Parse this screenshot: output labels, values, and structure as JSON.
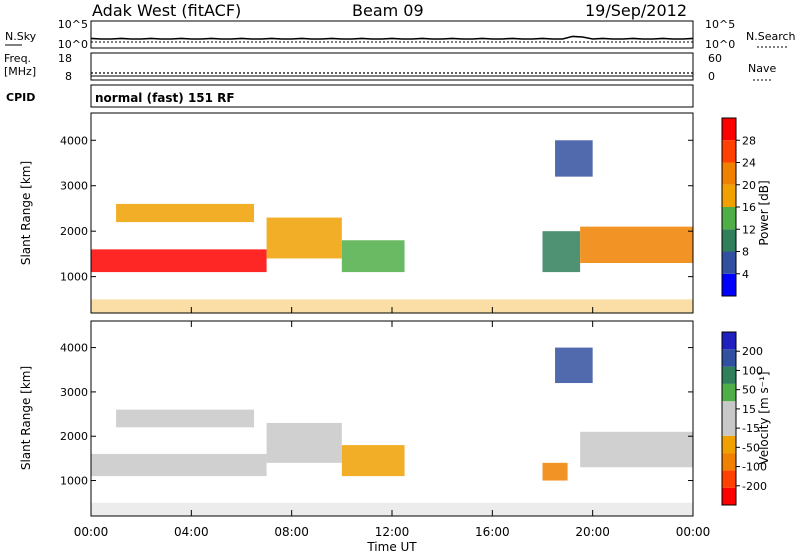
{
  "header": {
    "station": "Adak West (fitACF)",
    "beam": "Beam 09",
    "date": "19/Sep/2012"
  },
  "noise_panel": {
    "left_label": "N.Sky",
    "right_label": "N.Search",
    "left_ticks": [
      "10^5",
      "10^0"
    ],
    "right_ticks": [
      "10^5",
      "10^0"
    ]
  },
  "freq_panel": {
    "left_label_line1": "Freq.",
    "left_label_line2": "[MHz]",
    "right_label": "Nave",
    "left_ticks": [
      "18",
      "8"
    ],
    "right_ticks": [
      "60",
      "0"
    ]
  },
  "cpid_panel": {
    "label": "CPID",
    "text": "normal (fast) 151 RF"
  },
  "colors": {
    "power_scale": [
      "#0000ff",
      "#3250a0",
      "#2f7f5a",
      "#4fae46",
      "#f0a000",
      "#f08000",
      "#ff4000",
      "#ff0000"
    ],
    "velocity_scale": [
      "#ff0000",
      "#ff4000",
      "#f08000",
      "#f0a000",
      "#c8c8c8",
      "#c8c8c8",
      "#4fae46",
      "#2f7f5a",
      "#3250a0",
      "#2020c0"
    ]
  },
  "chart_data": [
    {
      "type": "heatmap",
      "name": "power",
      "ylabel": "Slant Range [km]",
      "y_ticks": [
        "1000",
        "2000",
        "3000",
        "4000"
      ],
      "ylim": [
        200,
        4600
      ],
      "colorbar_label": "Power [dB]",
      "colorbar_ticks": [
        "4",
        "8",
        "12",
        "16",
        "20",
        "24",
        "28"
      ],
      "clim": [
        0,
        30
      ],
      "echo_regions": [
        {
          "t_start": 0.0,
          "t_end": 7.0,
          "r_low": 1100,
          "r_high": 1600,
          "value": 27
        },
        {
          "t_start": 7.0,
          "t_end": 10.0,
          "r_low": 1400,
          "r_high": 2300,
          "value": 18
        },
        {
          "t_start": 1.0,
          "t_end": 6.5,
          "r_low": 2200,
          "r_high": 2600,
          "value": 15
        },
        {
          "t_start": 10.0,
          "t_end": 12.5,
          "r_low": 1100,
          "r_high": 1800,
          "value": 12
        },
        {
          "t_start": 18.0,
          "t_end": 19.5,
          "r_low": 1100,
          "r_high": 2000,
          "value": 8
        },
        {
          "t_start": 19.5,
          "t_end": 24.0,
          "r_low": 1300,
          "r_high": 2100,
          "value": 20
        },
        {
          "t_start": 18.5,
          "t_end": 20.0,
          "r_low": 3200,
          "r_high": 4000,
          "value": 5
        }
      ]
    },
    {
      "type": "heatmap",
      "name": "velocity",
      "ylabel": "Slant Range [km]",
      "y_ticks": [
        "1000",
        "2000",
        "3000",
        "4000"
      ],
      "ylim": [
        200,
        4600
      ],
      "colorbar_label": "Velocity [m s⁻¹]",
      "colorbar_ticks": [
        "-200",
        "-100",
        "-50",
        "-15",
        "15",
        "50",
        "100",
        "200"
      ],
      "clim": [
        -250,
        250
      ],
      "echo_regions": [
        {
          "t_start": 0.0,
          "t_end": 7.0,
          "r_low": 1100,
          "r_high": 1600,
          "value": 0
        },
        {
          "t_start": 7.0,
          "t_end": 10.0,
          "r_low": 1400,
          "r_high": 2300,
          "value": 0
        },
        {
          "t_start": 1.0,
          "t_end": 6.5,
          "r_low": 2200,
          "r_high": 2600,
          "value": 0
        },
        {
          "t_start": 10.0,
          "t_end": 12.5,
          "r_low": 1100,
          "r_high": 1800,
          "value": -80
        },
        {
          "t_start": 18.0,
          "t_end": 19.0,
          "r_low": 1000,
          "r_high": 1400,
          "value": -120
        },
        {
          "t_start": 19.5,
          "t_end": 24.0,
          "r_low": 1300,
          "r_high": 2100,
          "value": 0
        },
        {
          "t_start": 18.5,
          "t_end": 20.0,
          "r_low": 3200,
          "r_high": 4000,
          "value": 150
        }
      ]
    }
  ],
  "x_axis": {
    "ticks": [
      "00:00",
      "04:00",
      "08:00",
      "12:00",
      "16:00",
      "20:00",
      "00:00"
    ],
    "label": "Time UT",
    "xlim": [
      0,
      24
    ]
  }
}
